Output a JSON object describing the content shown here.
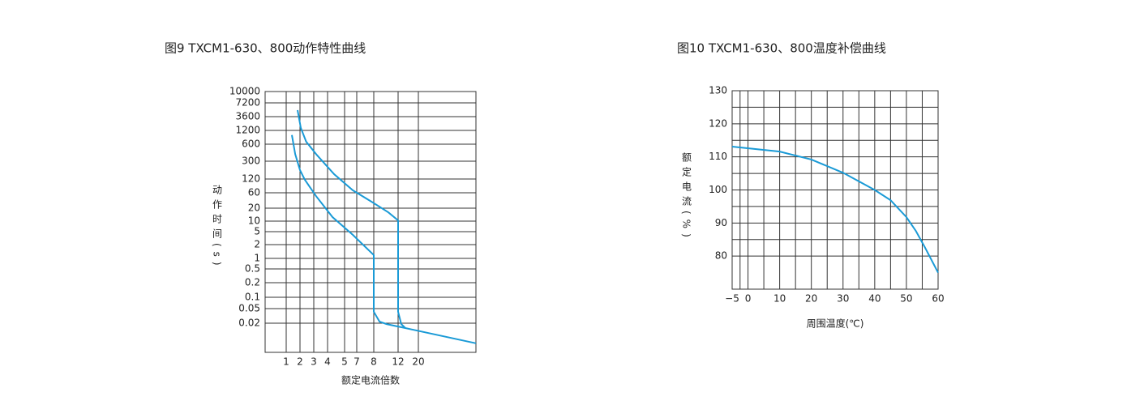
{
  "chart_data": [
    {
      "type": "line",
      "title": "图9 TXCM1-630、800动作特性曲线",
      "x_label": "额定电流倍数",
      "y_label": "动作时间(s)",
      "log_scale": true,
      "grid": true,
      "xlim": [
        0.5,
        100
      ],
      "xticks": [
        1,
        2,
        3,
        4,
        5,
        7,
        8,
        12,
        20
      ],
      "ylim": [
        0.005,
        10000
      ],
      "yticks": [
        10000,
        7200,
        3600,
        1200,
        600,
        300,
        120,
        60,
        20,
        10,
        5,
        2,
        1,
        0.5,
        0.2,
        0.1,
        0.05,
        0.02
      ],
      "series": [
        {
          "color": "#1a9ad6",
          "x": [
            1.33,
            1.57,
            2,
            2.3,
            3.15,
            4.27,
            6.27,
            8,
            8,
            8.8,
            9.9,
            14.4,
            100
          ],
          "values": [
            950,
            400,
            190,
            116,
            47,
            12.4,
            4,
            1.18,
            0.041,
            0.022,
            0.0192,
            0.0159,
            0.0077
          ]
        },
        {
          "color": "#1a9ad6",
          "x": [
            1.77,
            2.05,
            2.4,
            3.15,
            4.36,
            6.27,
            7.94,
            10.2,
            12,
            12,
            13,
            14.4
          ],
          "values": [
            5000,
            1470,
            680,
            400,
            154,
            68,
            30,
            16,
            10.4,
            0.041,
            0.0192,
            0.0159
          ]
        }
      ]
    },
    {
      "type": "line",
      "title": "图10 TXCM1-630、800温度补偿曲线",
      "x_label": "周围温度(℃)",
      "y_label": "额定电流(%)",
      "grid": true,
      "xlim": [
        -5,
        60
      ],
      "xticks": [
        {
          "value": -5,
          "label": "−5"
        },
        0,
        10,
        20,
        30,
        40,
        50,
        60
      ],
      "ylim": [
        70,
        130
      ],
      "yticks": [
        80,
        90,
        100,
        110,
        120,
        130
      ],
      "x": [
        -5,
        10,
        20,
        30,
        40,
        45,
        50,
        53,
        55.8,
        60
      ],
      "values": [
        113.1,
        111.6,
        109.2,
        105.2,
        100,
        96.9,
        91.8,
        87.6,
        82.7,
        75
      ],
      "color": "#1a9ad6"
    }
  ]
}
